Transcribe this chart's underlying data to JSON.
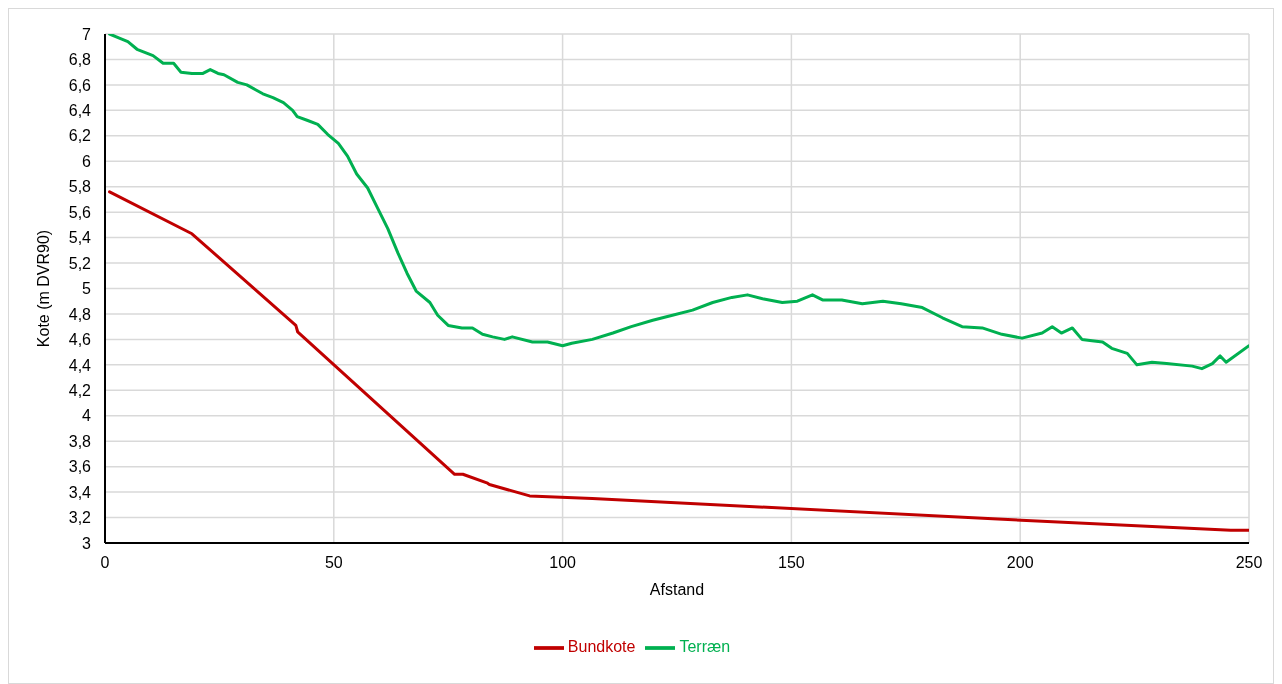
{
  "chart_data": {
    "type": "line",
    "xlabel": "Afstand",
    "ylabel": "Kote (m DVR90)",
    "xlim": [
      0,
      250
    ],
    "xticks": [
      0,
      50,
      100,
      150,
      200,
      250
    ],
    "ylim": [
      3,
      7
    ],
    "yticks": [
      3,
      {
        "value": 3.2,
        "label": "3,2"
      },
      {
        "value": 3.4,
        "label": "3,4"
      },
      {
        "value": 3.6,
        "label": "3,6"
      },
      {
        "value": 3.8,
        "label": "3,8"
      },
      4,
      {
        "value": 4.2,
        "label": "4,2"
      },
      {
        "value": 4.4,
        "label": "4,4"
      },
      {
        "value": 4.6,
        "label": "4,6"
      },
      {
        "value": 4.8,
        "label": "4,8"
      },
      5,
      {
        "value": 5.2,
        "label": "5,2"
      },
      {
        "value": 5.4,
        "label": "5,4"
      },
      {
        "value": 5.6,
        "label": "5,6"
      },
      {
        "value": 5.8,
        "label": "5,8"
      },
      6,
      {
        "value": 6.2,
        "label": "6,2"
      },
      {
        "value": 6.4,
        "label": "6,4"
      },
      {
        "value": 6.6,
        "label": "6,6"
      },
      {
        "value": 6.8,
        "label": "6,8"
      },
      7
    ],
    "grid": true,
    "legend": "bottom",
    "marker": "none",
    "line_style": "solid",
    "series": [
      {
        "name": "Terræn",
        "color": "#00b050",
        "x": [
          1,
          3,
          5,
          7,
          10.5,
          12.7,
          15,
          16.6,
          19,
          21.4,
          23,
          24.7,
          26,
          29,
          31,
          33,
          34.5,
          36.7,
          39,
          41,
          42,
          44.3,
          46.5,
          48.7,
          51,
          53,
          55,
          57.4,
          59.6,
          61.8,
          64,
          66,
          68,
          71,
          72.7,
          75,
          78,
          80.3,
          82.5,
          84.7,
          87.3,
          89,
          93.4,
          96.7,
          100,
          102,
          106.5,
          111,
          115,
          119.7,
          124,
          128.4,
          132.8,
          137,
          140.4,
          143.7,
          148,
          151.3,
          154.6,
          156.8,
          161,
          165.5,
          170,
          174,
          178.6,
          183,
          187.3,
          191.7,
          196,
          200.4,
          204.8,
          207,
          209,
          211.4,
          213.5,
          215.7,
          218,
          220,
          223.4,
          225.5,
          228.8,
          232,
          237.6,
          239.7,
          242,
          243.7,
          245,
          250
        ],
        "values": [
          7.0,
          6.97,
          6.94,
          6.88,
          6.83,
          6.77,
          6.77,
          6.7,
          6.69,
          6.69,
          6.72,
          6.69,
          6.68,
          6.62,
          6.6,
          6.56,
          6.53,
          6.5,
          6.46,
          6.4,
          6.35,
          6.32,
          6.29,
          6.21,
          6.14,
          6.04,
          5.9,
          5.79,
          5.63,
          5.47,
          5.28,
          5.12,
          4.98,
          4.89,
          4.79,
          4.71,
          4.69,
          4.69,
          4.64,
          4.62,
          4.6,
          4.62,
          4.58,
          4.58,
          4.55,
          4.57,
          4.6,
          4.65,
          4.7,
          4.75,
          4.79,
          4.83,
          4.89,
          4.93,
          4.95,
          4.92,
          4.89,
          4.9,
          4.95,
          4.91,
          4.91,
          4.88,
          4.9,
          4.88,
          4.85,
          4.77,
          4.7,
          4.69,
          4.64,
          4.61,
          4.65,
          4.7,
          4.65,
          4.69,
          4.6,
          4.59,
          4.58,
          4.53,
          4.49,
          4.4,
          4.42,
          4.41,
          4.39,
          4.37,
          4.41,
          4.47,
          4.42,
          4.55
        ]
      },
      {
        "name": "Bundkote",
        "color": "#c00000",
        "x": [
          1,
          19,
          41.7,
          42.1,
          76.4,
          78.2,
          83.6,
          84,
          92.8,
          106.5,
          194,
          246,
          250
        ],
        "values": [
          5.76,
          5.43,
          4.71,
          4.66,
          3.54,
          3.54,
          3.47,
          3.46,
          3.37,
          3.35,
          3.19,
          3.1,
          3.1
        ]
      }
    ]
  }
}
